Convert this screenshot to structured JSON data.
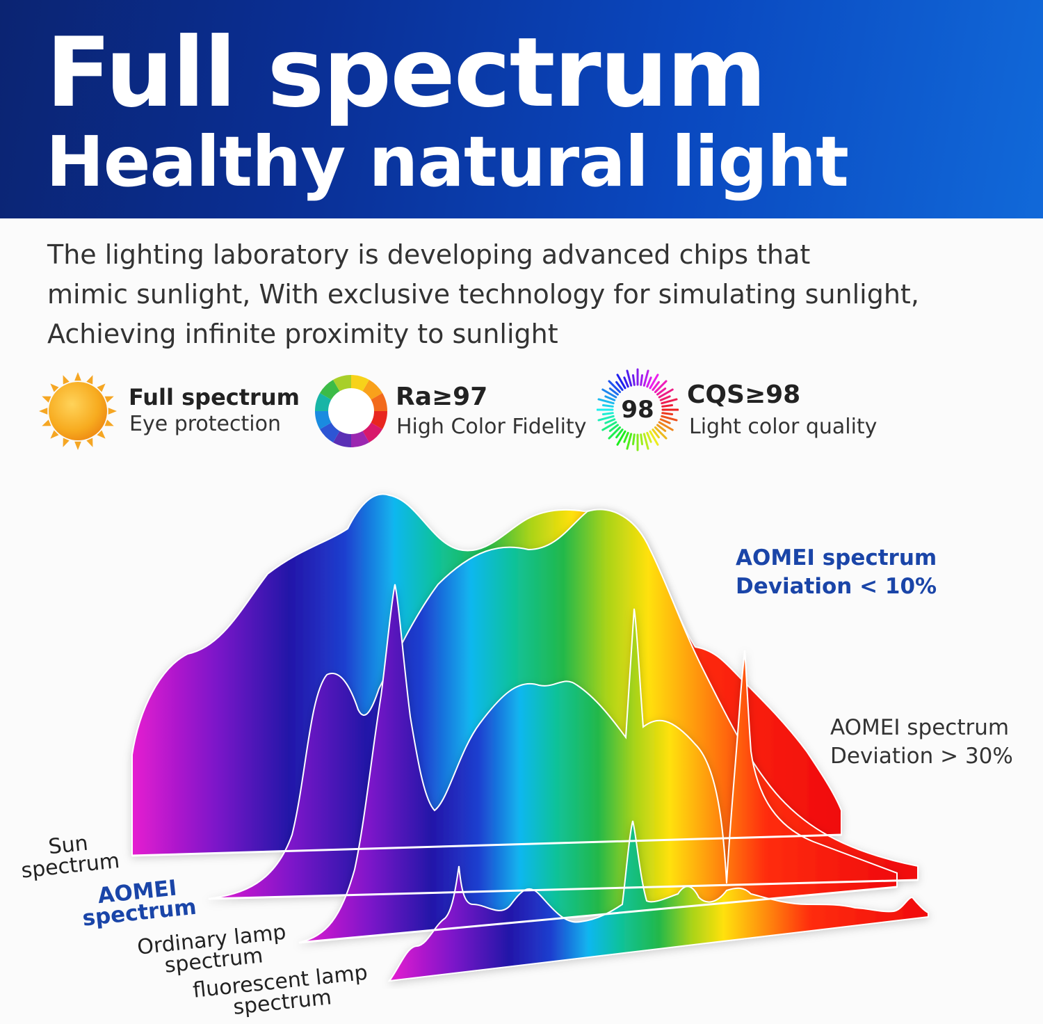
{
  "header": {
    "title_line1": "Full spectrum",
    "title_line2": "Healthy natural light"
  },
  "description": {
    "line1": "The lighting laboratory is developing advanced chips that",
    "line2": "mimic sunlight, With exclusive technology for simulating sunlight,",
    "line3": "Achieving infinite proximity to sunlight"
  },
  "features": [
    {
      "icon": "sun-icon",
      "title": "Full spectrum",
      "subtitle": "Eye protection"
    },
    {
      "icon": "color-wheel-icon",
      "title": "Ra≥97",
      "subtitle": "High Color Fidelity"
    },
    {
      "icon": "cqs-badge-icon",
      "badge": "98",
      "title": "CQS≥98",
      "subtitle": "Light color quality"
    }
  ],
  "chart": {
    "annotation_good": {
      "line1": "AOMEI spectrum",
      "line2": "Deviation < 10%"
    },
    "annotation_bad": {
      "line1": "AOMEI spectrum",
      "line2": "Deviation > 30%"
    },
    "layers": [
      {
        "label_line1": "Sun",
        "label_line2": "spectrum"
      },
      {
        "label_line1": "AOMEI",
        "label_line2": "spectrum"
      },
      {
        "label_line1": "Ordinary lamp",
        "label_line2": "spectrum"
      },
      {
        "label_line1": "fluorescent lamp",
        "label_line2": "spectrum"
      }
    ]
  },
  "colors": {
    "header_start": "#0b2472",
    "header_end": "#1169d9",
    "accent_blue": "#1a45a8",
    "sun": "#f6a21b"
  }
}
